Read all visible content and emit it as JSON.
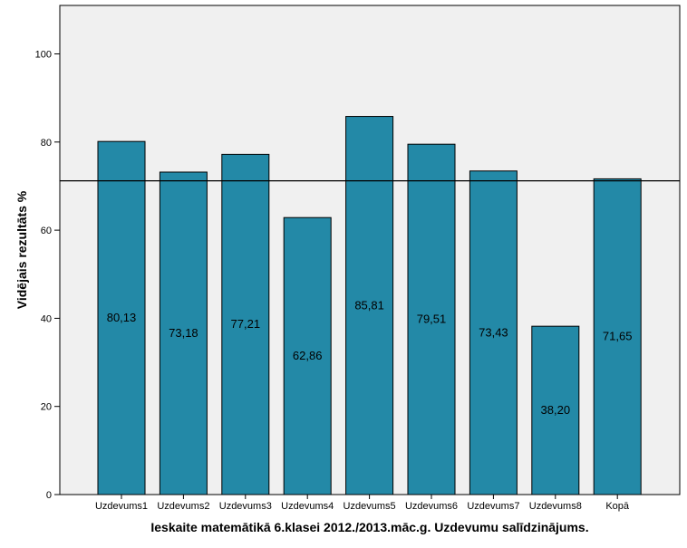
{
  "chart_data": {
    "type": "bar",
    "title": "",
    "xlabel": "Ieskaite matemātikā 6.klasei 2012./2013.māc.g. Uzdevumu salīdzinājums.",
    "ylabel": "Vidējais rezultāts %",
    "categories": [
      "Uzdevums1",
      "Uzdevums2",
      "Uzdevums3",
      "Uzdevums4",
      "Uzdevums5",
      "Uzdevums6",
      "Uzdevums7",
      "Uzdevums8",
      "Kopā"
    ],
    "values": [
      80.13,
      73.18,
      77.21,
      62.86,
      85.81,
      79.51,
      73.43,
      38.2,
      71.65
    ],
    "value_labels": [
      "80,13",
      "73,18",
      "77,21",
      "62,86",
      "85,81",
      "79,51",
      "73,43",
      "38,20",
      "71,65"
    ],
    "reference_line": 71.2,
    "ylim": [
      0,
      111
    ],
    "yticks": [
      0,
      20,
      40,
      60,
      80,
      100
    ],
    "grid": false,
    "colors": {
      "bar": "#2389a7",
      "bar_stroke": "#000000",
      "plot_background": "#f0f0f0"
    }
  }
}
